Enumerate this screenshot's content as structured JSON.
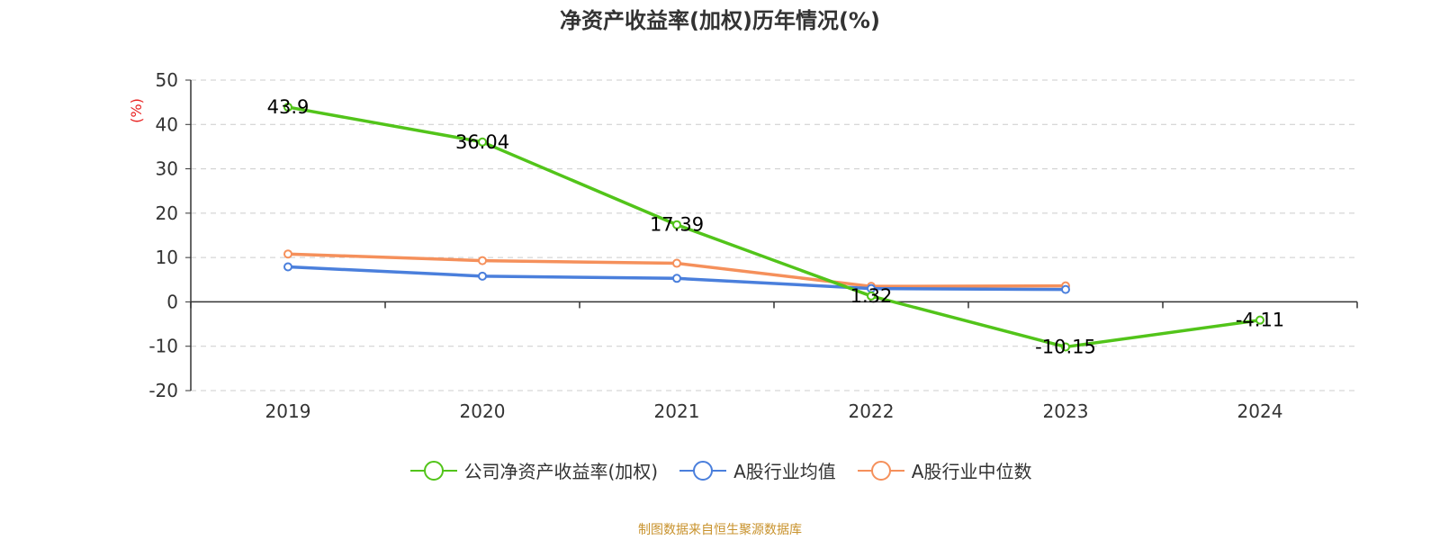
{
  "chart_data": {
    "type": "line",
    "title": "净资产收益率(加权)历年情况(%)",
    "ylabel": "(%)",
    "xlabel": "",
    "categories": [
      "2019",
      "2020",
      "2021",
      "2022",
      "2023",
      "2024"
    ],
    "ylim": [
      -20,
      50
    ],
    "yticks": [
      50,
      40,
      30,
      20,
      10,
      0,
      -10,
      -20
    ],
    "grid": true,
    "legend_position": "bottom",
    "series": [
      {
        "name": "公司净资产收益率(加权)",
        "color": "#52c41a",
        "values": [
          43.9,
          36.04,
          17.39,
          1.32,
          -10.15,
          -4.11
        ],
        "data_labels": [
          "43.9",
          "36.04",
          "17.39",
          "1.32",
          "-10.15",
          "-4.11"
        ]
      },
      {
        "name": "A股行业均值",
        "color": "#4a7fdc",
        "values": [
          7.9,
          5.8,
          5.3,
          3.0,
          2.8,
          null
        ]
      },
      {
        "name": "A股行业中位数",
        "color": "#f5905b",
        "values": [
          10.8,
          9.3,
          8.7,
          3.5,
          3.6,
          null
        ]
      }
    ]
  },
  "footer": {
    "source": "制图数据来自恒生聚源数据库"
  }
}
